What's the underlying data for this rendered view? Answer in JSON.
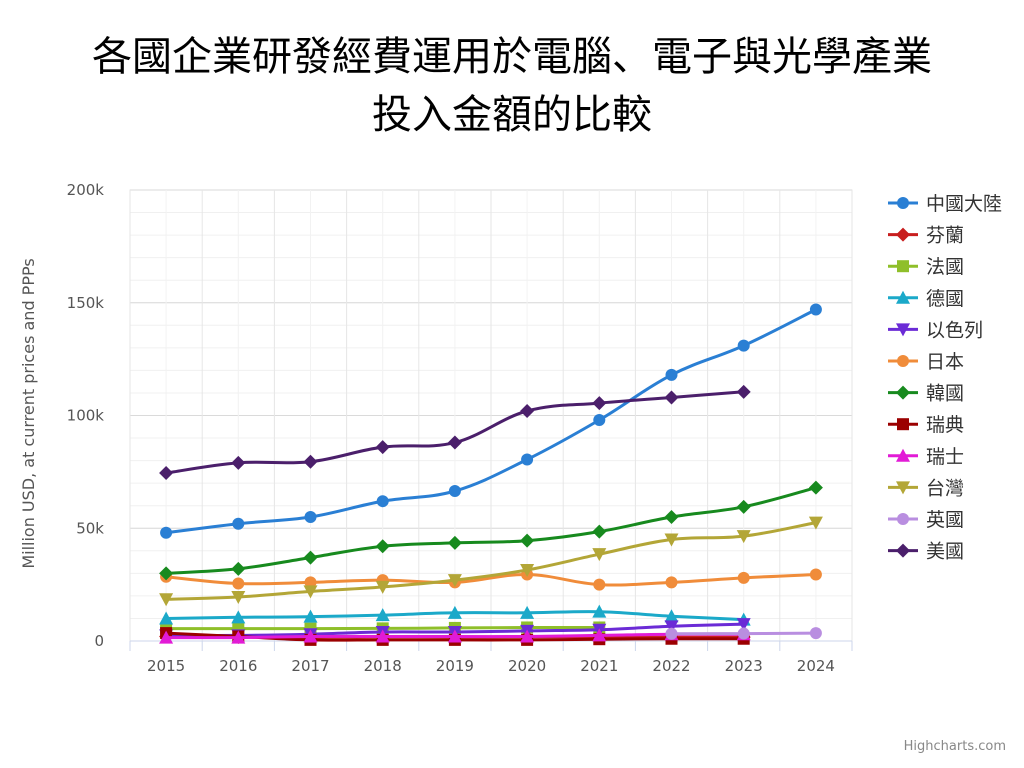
{
  "chart_data": {
    "type": "line",
    "title_lines": [
      "各國企業研發經費運用於電腦、電子與光學產業",
      "投入金額的比較"
    ],
    "xlabel": "",
    "ylabel": "Million USD, at current prices and PPPs",
    "x": [
      "2015",
      "2016",
      "2017",
      "2018",
      "2019",
      "2020",
      "2021",
      "2022",
      "2023",
      "2024"
    ],
    "ylim": [
      0,
      200000
    ],
    "yticks": [
      {
        "value": 0,
        "label": "0"
      },
      {
        "value": 50000,
        "label": "50k"
      },
      {
        "value": 100000,
        "label": "100k"
      },
      {
        "value": 150000,
        "label": "150k"
      },
      {
        "value": 200000,
        "label": "200k"
      }
    ],
    "grid": true,
    "legend_position": "right",
    "series": [
      {
        "name": "中國大陸",
        "color": "#2a7fd4",
        "marker": "circle",
        "values": [
          48000,
          52000,
          55000,
          62000,
          66500,
          80500,
          98000,
          118000,
          131000,
          147000
        ]
      },
      {
        "name": "芬蘭",
        "color": "#c81e1e",
        "marker": "diamond",
        "values": [
          2000,
          1800,
          1700,
          1900,
          1800,
          1900,
          1900,
          1700,
          1700,
          null
        ]
      },
      {
        "name": "法國",
        "color": "#8fbf2a",
        "marker": "square",
        "values": [
          5500,
          5500,
          5500,
          5600,
          5800,
          6000,
          6000,
          null,
          null,
          null
        ]
      },
      {
        "name": "德國",
        "color": "#1ba9c9",
        "marker": "triangle-up",
        "values": [
          10000,
          10500,
          10800,
          11500,
          12500,
          12500,
          13000,
          11000,
          9500,
          null
        ]
      },
      {
        "name": "以色列",
        "color": "#6b2bd6",
        "marker": "triangle-down",
        "values": [
          2500,
          2500,
          3000,
          4000,
          4000,
          4500,
          5000,
          6500,
          7500,
          null
        ]
      },
      {
        "name": "日本",
        "color": "#f08c3a",
        "marker": "circle",
        "values": [
          28500,
          25500,
          26000,
          27000,
          26000,
          29500,
          25000,
          26000,
          28000,
          29500
        ]
      },
      {
        "name": "韓國",
        "color": "#178a1e",
        "marker": "diamond",
        "values": [
          30000,
          32000,
          37000,
          42000,
          43500,
          44500,
          48500,
          55000,
          59500,
          68000
        ]
      },
      {
        "name": "瑞典",
        "color": "#9b0000",
        "marker": "square",
        "values": [
          3500,
          2000,
          500,
          500,
          500,
          500,
          800,
          1000,
          1000,
          null
        ]
      },
      {
        "name": "瑞士",
        "color": "#e21bd6",
        "marker": "triangle-up",
        "values": [
          1500,
          1500,
          2000,
          2000,
          2000,
          2000,
          2500,
          3000,
          3000,
          null
        ]
      },
      {
        "name": "台灣",
        "color": "#b3a637",
        "marker": "triangle-down",
        "values": [
          18500,
          19500,
          22000,
          24000,
          27000,
          31500,
          38500,
          45000,
          46500,
          52500
        ]
      },
      {
        "name": "英國",
        "color": "#b98ee0",
        "marker": "circle",
        "values": [
          null,
          null,
          null,
          null,
          null,
          null,
          null,
          3200,
          3300,
          3500
        ]
      },
      {
        "name": "美國",
        "color": "#4b1f6b",
        "marker": "diamond",
        "values": [
          74500,
          79000,
          79500,
          86000,
          88000,
          102000,
          105500,
          108000,
          110500,
          null
        ]
      }
    ]
  },
  "credit": "Highcharts.com"
}
